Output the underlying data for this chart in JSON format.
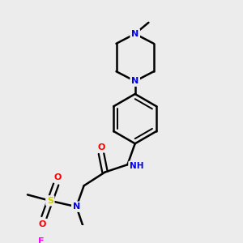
{
  "background_color": "#ececec",
  "bond_color": "#000000",
  "atom_colors": {
    "N": "#0000ee",
    "O": "#ff0000",
    "S": "#cccc00",
    "F": "#ff00ff",
    "H": "#008080",
    "C": "#000000"
  },
  "figsize": [
    3.0,
    3.0
  ],
  "dpi": 100
}
